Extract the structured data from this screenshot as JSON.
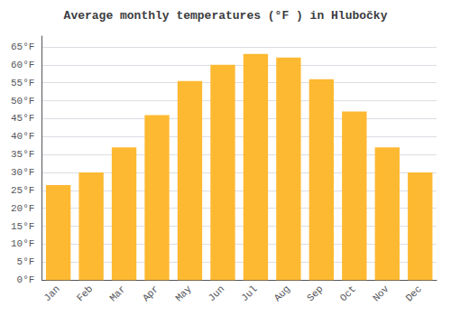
{
  "chart_data": {
    "type": "bar",
    "title": "Average monthly temperatures (°F ) in Hlubočky",
    "categories": [
      "Jan",
      "Feb",
      "Mar",
      "Apr",
      "May",
      "Jun",
      "Jul",
      "Aug",
      "Sep",
      "Oct",
      "Nov",
      "Dec"
    ],
    "values": [
      26.5,
      30,
      37,
      46,
      55.5,
      60,
      63,
      62,
      56,
      47,
      37,
      30
    ],
    "color": "#FDB931",
    "ylim": [
      0,
      68
    ],
    "yticks": [
      {
        "value": 0,
        "label": "0°F"
      },
      {
        "value": 5,
        "label": "5°F"
      },
      {
        "value": 10,
        "label": "10°F"
      },
      {
        "value": 15,
        "label": "15°F"
      },
      {
        "value": 20,
        "label": "20°F"
      },
      {
        "value": 25,
        "label": "25°F"
      },
      {
        "value": 30,
        "label": "30°F"
      },
      {
        "value": 35,
        "label": "35°F"
      },
      {
        "value": 40,
        "label": "40°F"
      },
      {
        "value": 45,
        "label": "45°F"
      },
      {
        "value": 50,
        "label": "50°F"
      },
      {
        "value": 55,
        "label": "55°F"
      },
      {
        "value": 60,
        "label": "60°F"
      },
      {
        "value": 65,
        "label": "65°F"
      }
    ],
    "grid": true
  }
}
